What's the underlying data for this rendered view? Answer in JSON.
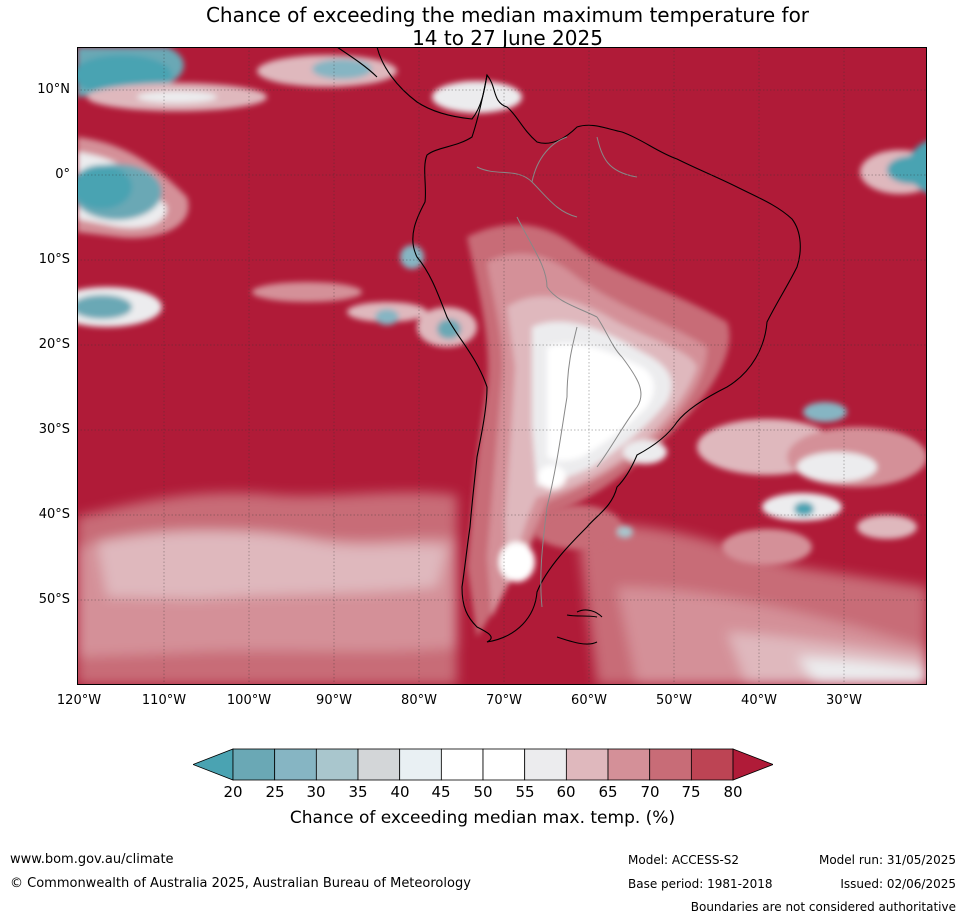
{
  "title": {
    "line1": "Chance of exceeding the median maximum temperature for",
    "line2": "14 to 27 June 2025"
  },
  "map": {
    "latitude_labels": [
      "10°N",
      "0°",
      "10°S",
      "20°S",
      "30°S",
      "40°S",
      "50°S"
    ],
    "longitude_labels": [
      "120°W",
      "110°W",
      "100°W",
      "90°W",
      "80°W",
      "70°W",
      "60°W",
      "50°W",
      "40°W",
      "30°W"
    ],
    "colors": {
      "above_80": "#b01b38",
      "75_80": "#bd4454",
      "70_75": "#c86c77",
      "65_70": "#d49098",
      "60_65": "#dfb8bd",
      "55_60": "#ececee",
      "45_55": "#ffffff",
      "40_45": "#e9f0f3",
      "35_40": "#d3d6d8",
      "30_35": "#a9c6cd",
      "25_30": "#86b5c3",
      "20_25": "#6aa8b5",
      "below_20": "#4aa3b2"
    }
  },
  "colorbar": {
    "ticks": [
      "20",
      "25",
      "30",
      "35",
      "40",
      "45",
      "50",
      "55",
      "60",
      "65",
      "70",
      "75",
      "80"
    ],
    "colors": [
      "#4aa3b2",
      "#6aa8b5",
      "#86b5c3",
      "#a9c6cd",
      "#d3d6d8",
      "#e9f0f3",
      "#ffffff",
      "#ffffff",
      "#ececee",
      "#dfb8bd",
      "#d49098",
      "#c86c77",
      "#bd4454",
      "#b01b38"
    ],
    "label": "Chance of exceeding median max. temp. (%)"
  },
  "footer": {
    "website": "www.bom.gov.au/climate",
    "copyright": "© Commonwealth of Australia 2025, Australian Bureau of Meteorology",
    "model": "Model: ACCESS-S2",
    "base_period": "Base period: 1981-2018",
    "model_run": "Model run: 31/05/2025",
    "issued": "Issued: 02/06/2025",
    "disclaimer": "Boundaries are not considered authoritative"
  }
}
